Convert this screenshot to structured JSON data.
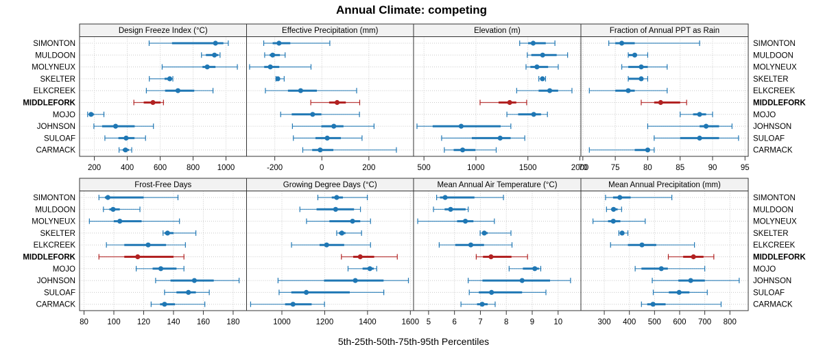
{
  "chart_data": {
    "type": "dotplot-percentiles",
    "title": "Annual Climate: competing",
    "xlabel": "5th-25th-50th-75th-95th Percentiles",
    "sites": [
      "SIMONTON",
      "MULDOON",
      "MOLYNEUX",
      "SKELTER",
      "ELKCREEK",
      "MIDDLEFORK",
      "MOJO",
      "JOHNSON",
      "SULOAF",
      "CARMACK"
    ],
    "highlight_site": "MIDDLEFORK",
    "colors": {
      "normal": "#1f77b4",
      "highlight": "#b22222",
      "strip_bg": "#f2f2f2",
      "grid": "#c8c8c8"
    },
    "percentile_fields": [
      "p5",
      "p25",
      "p50",
      "p75",
      "p95"
    ],
    "grid": true,
    "panels": [
      {
        "title": "Design Freeze Index (°C)",
        "xlim": [
          110,
          1125
        ],
        "ticks": [
          200,
          400,
          600,
          800,
          1000
        ],
        "row": 1,
        "col": 1,
        "values": [
          [
            533,
            672,
            936,
            984,
            1014
          ],
          [
            851,
            878,
            930,
            954,
            964
          ],
          [
            612,
            857,
            886,
            936,
            1069
          ],
          [
            534,
            627,
            658,
            670,
            677
          ],
          [
            516,
            630,
            708,
            807,
            921
          ],
          [
            440,
            500,
            556,
            603,
            620
          ],
          [
            159,
            167,
            180,
            197,
            258
          ],
          [
            197,
            247,
            329,
            445,
            559
          ],
          [
            264,
            346,
            393,
            444,
            511
          ],
          [
            350,
            372,
            389,
            410,
            427
          ]
        ]
      },
      {
        "title": "Effective Precipitation (mm)",
        "xlim": [
          -320,
          390
        ],
        "ticks": [
          -200,
          0,
          200
        ],
        "row": 1,
        "col": 2,
        "values": [
          [
            -247,
            -209,
            -182,
            -134,
            34
          ],
          [
            -243,
            -222,
            -209,
            -178,
            -156
          ],
          [
            -307,
            -245,
            -219,
            -181,
            -46
          ],
          [
            -195,
            -192,
            -187,
            -180,
            -160
          ],
          [
            -240,
            -144,
            -90,
            -21,
            148
          ],
          [
            -47,
            31,
            65,
            102,
            161
          ],
          [
            -175,
            -128,
            -39,
            -2,
            160
          ],
          [
            -125,
            -2,
            51,
            92,
            222
          ],
          [
            -121,
            -27,
            23,
            81,
            171
          ],
          [
            -81,
            -41,
            -7,
            49,
            317
          ]
        ]
      },
      {
        "title": "Elevation (m)",
        "xlim": [
          400,
          2010
        ],
        "ticks": [
          500,
          1000,
          1500,
          2000
        ],
        "row": 1,
        "col": 3,
        "values": [
          [
            1421,
            1502,
            1551,
            1672,
            1760
          ],
          [
            1494,
            1533,
            1642,
            1777,
            1882
          ],
          [
            1482,
            1524,
            1587,
            1695,
            1792
          ],
          [
            1605,
            1625,
            1640,
            1655,
            1670
          ],
          [
            1392,
            1603,
            1710,
            1791,
            1924
          ],
          [
            1040,
            1218,
            1325,
            1388,
            1488
          ],
          [
            1298,
            1406,
            1556,
            1626,
            1688
          ],
          [
            433,
            584,
            858,
            1238,
            1336
          ],
          [
            670,
            961,
            1233,
            1334,
            1470
          ],
          [
            696,
            786,
            872,
            995,
            1195
          ]
        ]
      },
      {
        "title": "Fraction of Annual PPT as Rain",
        "xlim": [
          69.7,
          95.5
        ],
        "ticks": [
          70,
          75,
          80,
          85,
          90,
          95
        ],
        "row": 1,
        "col": 4,
        "values": [
          [
            74,
            75,
            76,
            78,
            88
          ],
          [
            77,
            77,
            78,
            78,
            80
          ],
          [
            76,
            77,
            79,
            80,
            83
          ],
          [
            77,
            77,
            79,
            79,
            80
          ],
          [
            71,
            75,
            77,
            78,
            83
          ],
          [
            79,
            81,
            82,
            85,
            86
          ],
          [
            85,
            87,
            88,
            89,
            90
          ],
          [
            80,
            88,
            89,
            91,
            93
          ],
          [
            81,
            85,
            88,
            91,
            94
          ],
          [
            71,
            78,
            80,
            80,
            81
          ]
        ]
      },
      {
        "title": "Frost-Free Days",
        "xlim": [
          77,
          189
        ],
        "ticks": [
          80,
          100,
          120,
          140,
          160,
          180
        ],
        "row": 2,
        "col": 1,
        "values": [
          [
            90,
            94,
            96,
            120,
            143
          ],
          [
            93,
            97,
            99.5,
            104,
            117.5
          ],
          [
            83.6,
            100,
            104,
            118.6,
            144
          ],
          [
            133,
            134,
            136,
            140,
            155
          ],
          [
            95,
            107,
            123,
            135,
            148
          ],
          [
            90,
            107,
            116,
            140,
            147
          ],
          [
            115,
            126,
            131.5,
            142,
            147
          ],
          [
            128,
            138,
            154,
            167,
            184
          ],
          [
            134,
            142,
            150,
            155,
            164
          ],
          [
            125,
            131,
            134,
            141,
            161
          ]
        ]
      },
      {
        "title": "Growing Degree Days (°C)",
        "xlim": [
          835,
          1615
        ],
        "ticks": [
          1000,
          1200,
          1400,
          1600
        ],
        "row": 2,
        "col": 2,
        "values": [
          [
            1168,
            1233,
            1256,
            1285,
            1399
          ],
          [
            1084,
            1162,
            1251,
            1337,
            1367
          ],
          [
            1115,
            1222,
            1330,
            1366,
            1414
          ],
          [
            1256,
            1266,
            1280,
            1297,
            1372
          ],
          [
            1045,
            1176,
            1209,
            1291,
            1414
          ],
          [
            1278,
            1333,
            1366,
            1431,
            1539
          ],
          [
            1309,
            1377,
            1411,
            1429,
            1443
          ],
          [
            982,
            1197,
            1343,
            1475,
            1591
          ],
          [
            987,
            1044,
            1114,
            1317,
            1476
          ],
          [
            854,
            1015,
            1052,
            1139,
            1199
          ]
        ]
      },
      {
        "title": "Mean Annual Air Temperature (°C)",
        "xlim": [
          4.42,
          10.88
        ],
        "ticks": [
          5,
          6,
          7,
          8,
          9,
          10
        ],
        "row": 2,
        "col": 3,
        "values": [
          [
            5.31,
            5.44,
            5.64,
            6.77,
            7.89
          ],
          [
            5.19,
            5.62,
            5.85,
            6.43,
            6.53
          ],
          [
            4.58,
            6.1,
            6.42,
            6.73,
            7.54
          ],
          [
            6.99,
            7.08,
            7.15,
            7.28,
            8.18
          ],
          [
            5.41,
            6.03,
            6.63,
            7.14,
            8.22
          ],
          [
            6.84,
            7.1,
            7.41,
            8.2,
            8.82
          ],
          [
            8.11,
            8.64,
            9.1,
            9.26,
            9.33
          ],
          [
            6.53,
            7.08,
            8.61,
            9.69,
            10.48
          ],
          [
            6.57,
            6.94,
            7.43,
            8.61,
            9.53
          ],
          [
            6.25,
            6.87,
            7.07,
            7.28,
            7.57
          ]
        ]
      },
      {
        "title": "Mean Annual Precipitation (mm)",
        "xlim": [
          207,
          873
        ],
        "ticks": [
          300,
          400,
          500,
          600,
          700,
          800
        ],
        "row": 2,
        "col": 4,
        "values": [
          [
            305,
            335,
            362,
            405,
            569
          ],
          [
            309,
            327,
            337,
            353,
            369
          ],
          [
            255,
            315,
            336,
            364,
            463
          ],
          [
            358,
            364,
            371,
            380,
            394
          ],
          [
            325,
            394,
            450,
            507,
            659
          ],
          [
            555,
            614,
            655,
            695,
            736
          ],
          [
            423,
            448,
            527,
            553,
            700
          ],
          [
            491,
            595,
            644,
            700,
            837
          ],
          [
            495,
            557,
            598,
            639,
            710
          ],
          [
            448,
            471,
            494,
            544,
            765
          ]
        ]
      }
    ]
  }
}
